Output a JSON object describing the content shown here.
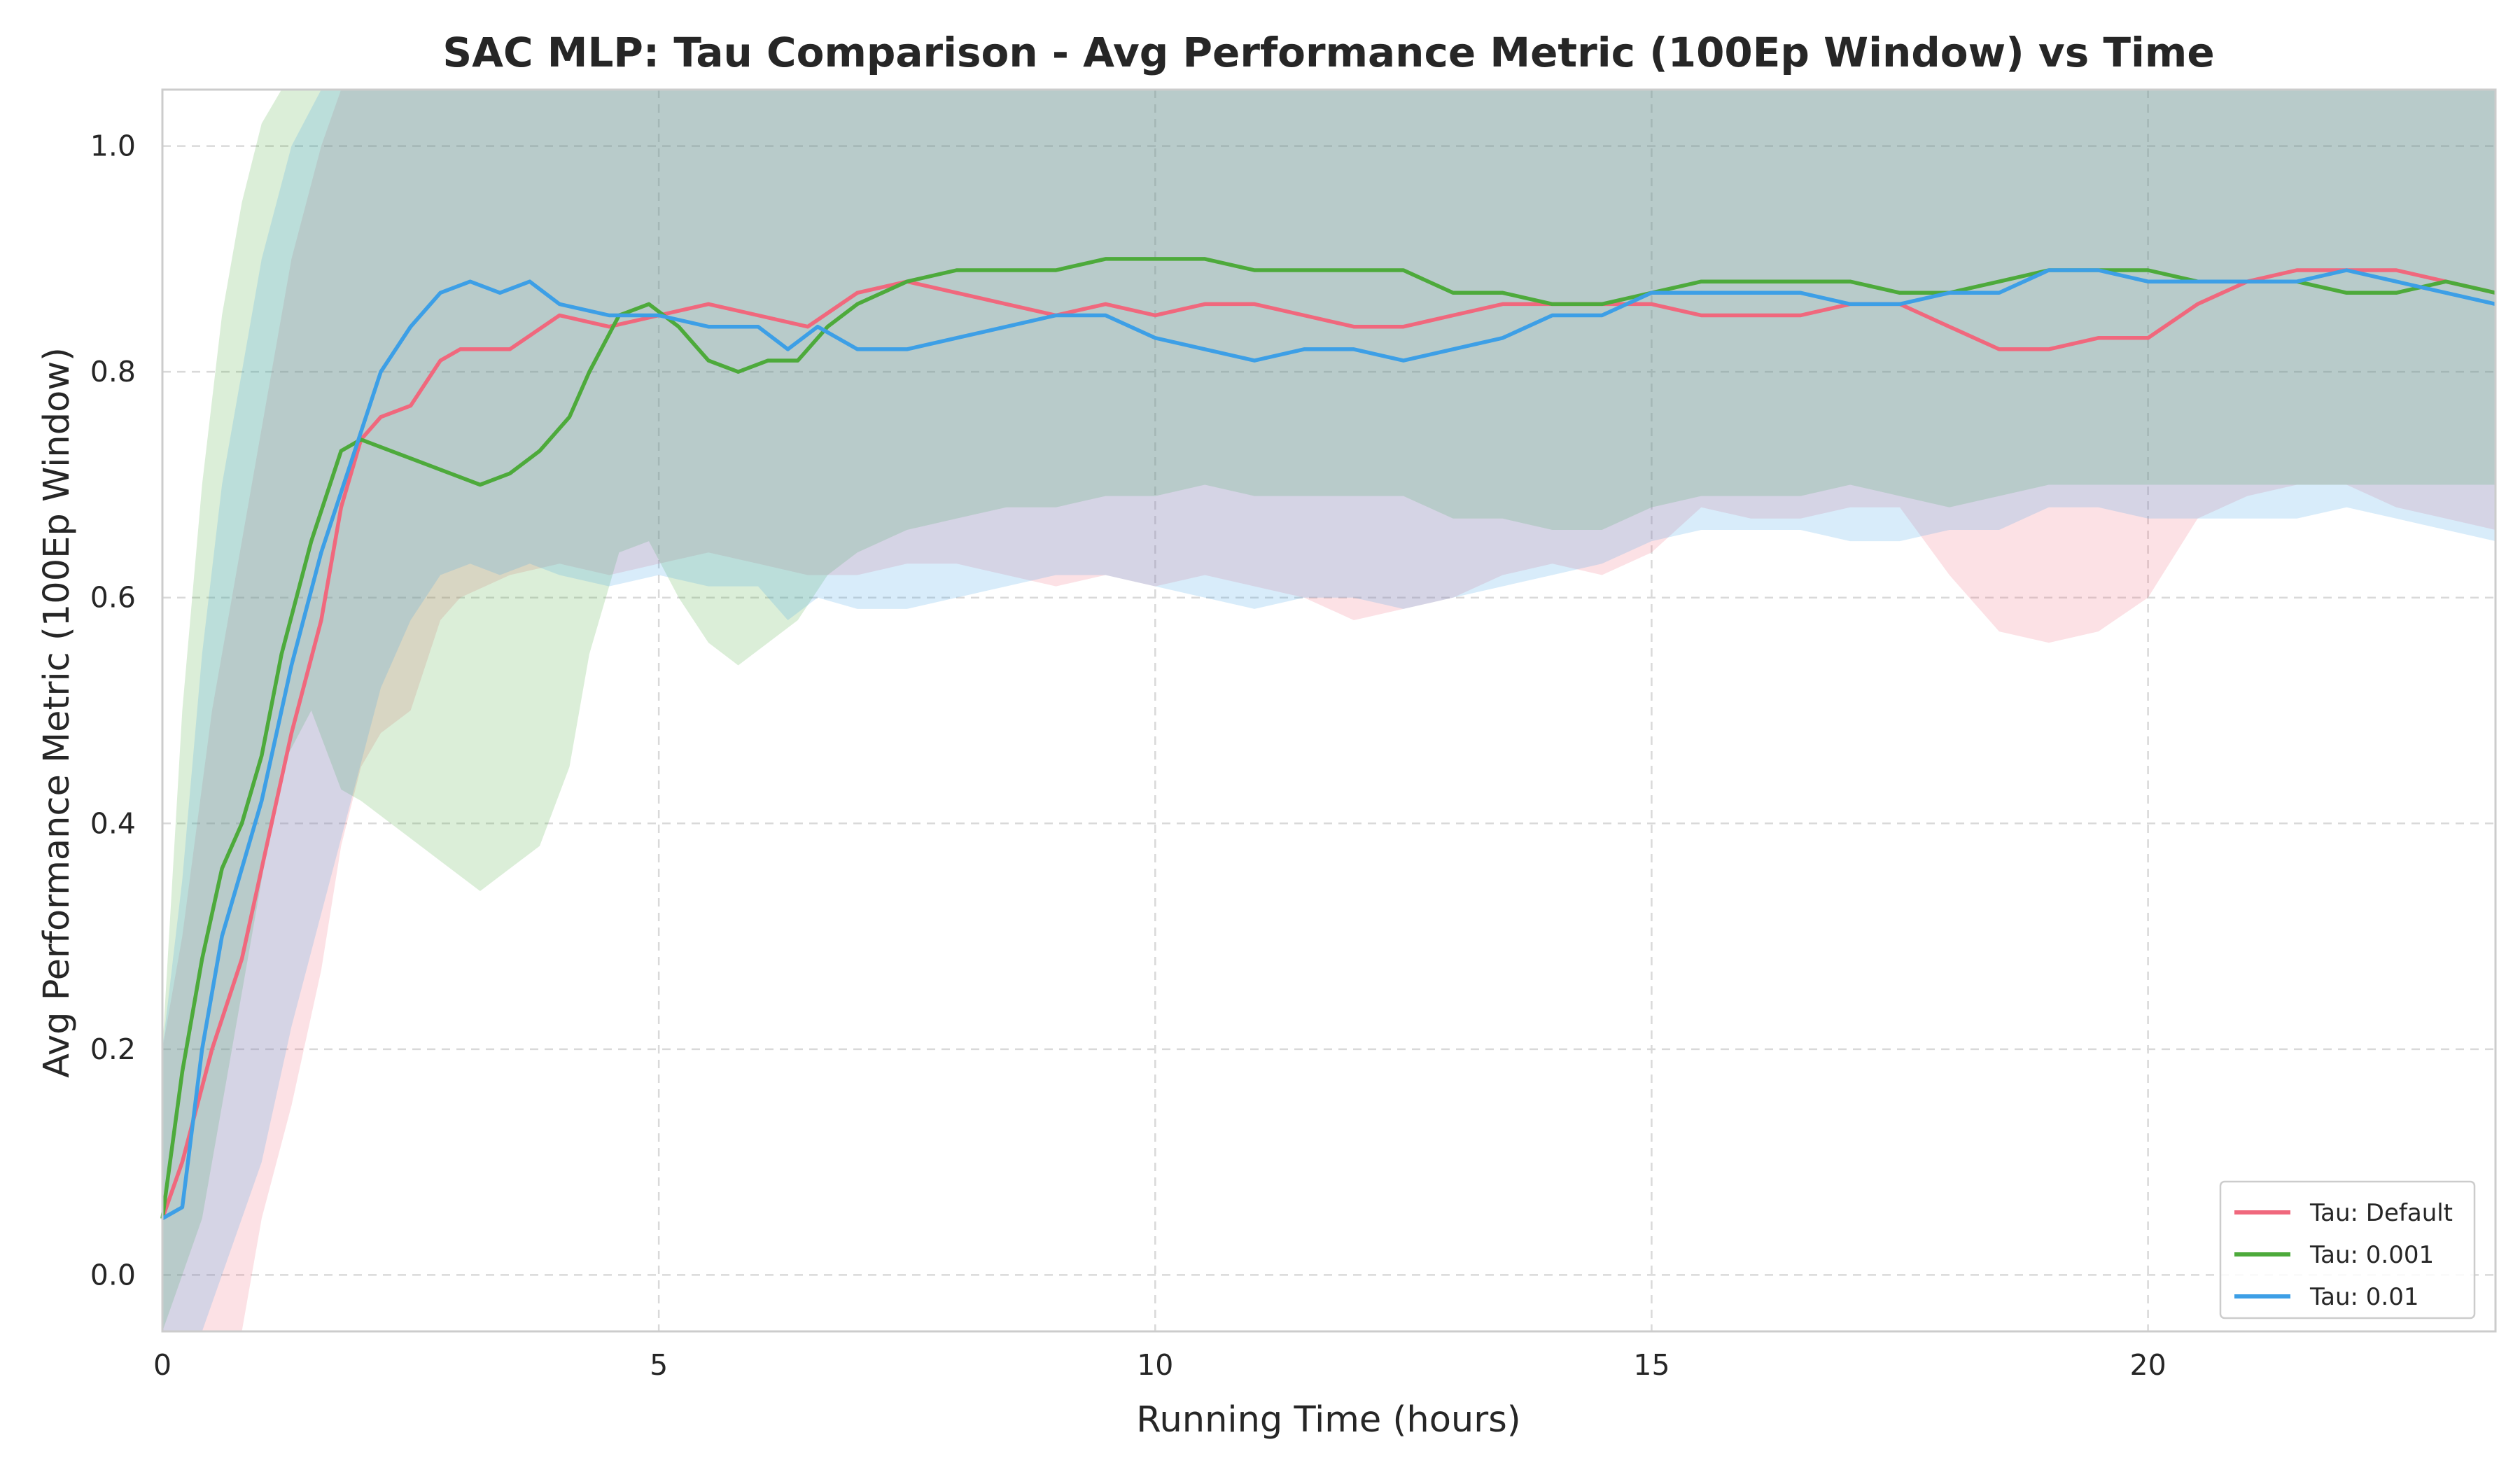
{
  "chart_data": {
    "type": "line",
    "title": "SAC MLP: Tau Comparison - Avg Performance Metric (100Ep Window) vs Time",
    "xlabel": "Running Time (hours)",
    "ylabel": "Avg Performance Metric (100Ep Window)",
    "xlim": [
      0,
      23.5
    ],
    "ylim": [
      -0.05,
      1.05
    ],
    "xticks": [
      0,
      5,
      10,
      15,
      20
    ],
    "yticks": [
      0.0,
      0.2,
      0.4,
      0.6,
      0.8,
      1.0
    ],
    "xtick_labels": [
      "0",
      "5",
      "10",
      "15",
      "20"
    ],
    "ytick_labels": [
      "0.0",
      "0.2",
      "0.4",
      "0.6",
      "0.8",
      "1.0"
    ],
    "grid": true,
    "legend_position": "bottom-right",
    "series": [
      {
        "name": "Tau: Default",
        "color": "#f0687d",
        "x": [
          0,
          0.2,
          0.5,
          0.8,
          1.0,
          1.3,
          1.6,
          1.8,
          2.0,
          2.2,
          2.5,
          2.8,
          3.0,
          3.5,
          4.0,
          4.5,
          5.0,
          5.5,
          6.0,
          6.5,
          7.0,
          7.5,
          8.0,
          8.5,
          9.0,
          9.5,
          10.0,
          10.5,
          11.0,
          11.5,
          12.0,
          12.5,
          13.0,
          13.5,
          14.0,
          14.5,
          15.0,
          15.5,
          16.0,
          16.5,
          17.0,
          17.5,
          18.0,
          18.5,
          19.0,
          19.5,
          20.0,
          20.5,
          21.0,
          21.5,
          22.0,
          22.5,
          23.0,
          23.5
        ],
        "y": [
          0.05,
          0.1,
          0.2,
          0.28,
          0.36,
          0.48,
          0.58,
          0.68,
          0.74,
          0.76,
          0.77,
          0.81,
          0.82,
          0.82,
          0.85,
          0.84,
          0.85,
          0.86,
          0.85,
          0.84,
          0.87,
          0.88,
          0.87,
          0.86,
          0.85,
          0.86,
          0.85,
          0.86,
          0.86,
          0.85,
          0.84,
          0.84,
          0.85,
          0.86,
          0.86,
          0.86,
          0.86,
          0.85,
          0.85,
          0.85,
          0.86,
          0.86,
          0.84,
          0.82,
          0.82,
          0.83,
          0.83,
          0.86,
          0.88,
          0.89,
          0.89,
          0.89,
          0.88,
          0.87
        ],
        "band_lower": [
          -0.05,
          -0.05,
          -0.05,
          -0.05,
          0.05,
          0.15,
          0.27,
          0.38,
          0.45,
          0.48,
          0.5,
          0.58,
          0.6,
          0.62,
          0.63,
          0.62,
          0.63,
          0.64,
          0.63,
          0.62,
          0.62,
          0.63,
          0.63,
          0.62,
          0.61,
          0.62,
          0.61,
          0.62,
          0.61,
          0.6,
          0.58,
          0.59,
          0.6,
          0.62,
          0.63,
          0.62,
          0.64,
          0.68,
          0.67,
          0.67,
          0.68,
          0.68,
          0.62,
          0.57,
          0.56,
          0.57,
          0.6,
          0.67,
          0.69,
          0.7,
          0.7,
          0.68,
          0.67,
          0.66
        ],
        "band_upper": [
          0.2,
          0.3,
          0.5,
          0.65,
          0.75,
          0.9,
          1.0,
          1.05,
          1.05,
          1.05,
          1.05,
          1.05,
          1.05,
          1.05,
          1.05,
          1.05,
          1.05,
          1.05,
          1.05,
          1.05,
          1.05,
          1.05,
          1.05,
          1.05,
          1.05,
          1.05,
          1.05,
          1.05,
          1.05,
          1.05,
          1.05,
          1.05,
          1.05,
          1.05,
          1.05,
          1.05,
          1.05,
          1.05,
          1.05,
          1.05,
          1.05,
          1.05,
          1.05,
          1.05,
          1.05,
          1.05,
          1.05,
          1.05,
          1.05,
          1.05,
          1.05,
          1.05,
          1.05,
          1.05
        ]
      },
      {
        "name": "Tau: 0.001",
        "color": "#4daa3b",
        "x": [
          0,
          0.2,
          0.4,
          0.6,
          0.8,
          1.0,
          1.2,
          1.5,
          1.8,
          2.0,
          2.3,
          2.6,
          2.9,
          3.2,
          3.5,
          3.8,
          4.1,
          4.3,
          4.6,
          4.9,
          5.2,
          5.5,
          5.8,
          6.1,
          6.4,
          6.7,
          7.0,
          7.5,
          8.0,
          8.5,
          9.0,
          9.5,
          10.0,
          10.5,
          11.0,
          11.5,
          12.0,
          12.5,
          13.0,
          13.5,
          14.0,
          14.5,
          15.0,
          15.5,
          16.0,
          16.5,
          17.0,
          17.5,
          18.0,
          18.5,
          19.0,
          19.5,
          20.0,
          20.5,
          21.0,
          21.5,
          22.0,
          22.5,
          23.0,
          23.5
        ],
        "y": [
          0.05,
          0.18,
          0.28,
          0.36,
          0.4,
          0.46,
          0.55,
          0.65,
          0.73,
          0.74,
          0.73,
          0.72,
          0.71,
          0.7,
          0.71,
          0.73,
          0.76,
          0.8,
          0.85,
          0.86,
          0.84,
          0.81,
          0.8,
          0.81,
          0.81,
          0.84,
          0.86,
          0.88,
          0.89,
          0.89,
          0.89,
          0.9,
          0.9,
          0.9,
          0.89,
          0.89,
          0.89,
          0.89,
          0.87,
          0.87,
          0.86,
          0.86,
          0.87,
          0.88,
          0.88,
          0.88,
          0.88,
          0.87,
          0.87,
          0.88,
          0.89,
          0.89,
          0.89,
          0.88,
          0.88,
          0.88,
          0.87,
          0.87,
          0.88,
          0.87
        ],
        "band_lower": [
          -0.05,
          0.0,
          0.05,
          0.15,
          0.25,
          0.35,
          0.45,
          0.5,
          0.43,
          0.42,
          0.4,
          0.38,
          0.36,
          0.34,
          0.36,
          0.38,
          0.45,
          0.55,
          0.64,
          0.65,
          0.6,
          0.56,
          0.54,
          0.56,
          0.58,
          0.62,
          0.64,
          0.66,
          0.67,
          0.68,
          0.68,
          0.69,
          0.69,
          0.7,
          0.69,
          0.69,
          0.69,
          0.69,
          0.67,
          0.67,
          0.66,
          0.66,
          0.68,
          0.69,
          0.69,
          0.69,
          0.7,
          0.69,
          0.68,
          0.69,
          0.7,
          0.7,
          0.7,
          0.7,
          0.7,
          0.7,
          0.7,
          0.7,
          0.7,
          0.7
        ],
        "band_upper": [
          0.2,
          0.5,
          0.7,
          0.85,
          0.95,
          1.02,
          1.05,
          1.05,
          1.05,
          1.05,
          1.05,
          1.05,
          1.05,
          1.05,
          1.05,
          1.05,
          1.05,
          1.05,
          1.05,
          1.05,
          1.05,
          1.05,
          1.05,
          1.05,
          1.05,
          1.05,
          1.05,
          1.05,
          1.05,
          1.05,
          1.05,
          1.05,
          1.05,
          1.05,
          1.05,
          1.05,
          1.05,
          1.05,
          1.05,
          1.05,
          1.05,
          1.05,
          1.05,
          1.05,
          1.05,
          1.05,
          1.05,
          1.05,
          1.05,
          1.05,
          1.05,
          1.05,
          1.05,
          1.05,
          1.05,
          1.05,
          1.05,
          1.05,
          1.05,
          1.05
        ]
      },
      {
        "name": "Tau: 0.01",
        "color": "#3d9fe6",
        "x": [
          0,
          0.2,
          0.4,
          0.6,
          0.8,
          1.0,
          1.3,
          1.6,
          1.9,
          2.2,
          2.5,
          2.8,
          3.1,
          3.4,
          3.7,
          4.0,
          4.5,
          5.0,
          5.5,
          6.0,
          6.3,
          6.6,
          7.0,
          7.5,
          8.0,
          8.5,
          9.0,
          9.5,
          10.0,
          10.5,
          11.0,
          11.5,
          12.0,
          12.5,
          13.0,
          13.5,
          14.0,
          14.5,
          15.0,
          15.5,
          16.0,
          16.5,
          17.0,
          17.5,
          18.0,
          18.5,
          19.0,
          19.5,
          20.0,
          20.5,
          21.0,
          21.5,
          22.0,
          22.5,
          23.0,
          23.5
        ],
        "y": [
          0.05,
          0.06,
          0.2,
          0.3,
          0.36,
          0.42,
          0.54,
          0.64,
          0.72,
          0.8,
          0.84,
          0.87,
          0.88,
          0.87,
          0.88,
          0.86,
          0.85,
          0.85,
          0.84,
          0.84,
          0.82,
          0.84,
          0.82,
          0.82,
          0.83,
          0.84,
          0.85,
          0.85,
          0.83,
          0.82,
          0.81,
          0.82,
          0.82,
          0.81,
          0.82,
          0.83,
          0.85,
          0.85,
          0.87,
          0.87,
          0.87,
          0.87,
          0.86,
          0.86,
          0.87,
          0.87,
          0.89,
          0.89,
          0.88,
          0.88,
          0.88,
          0.88,
          0.89,
          0.88,
          0.87,
          0.86
        ],
        "band_lower": [
          -0.05,
          -0.05,
          -0.05,
          0.0,
          0.05,
          0.1,
          0.22,
          0.32,
          0.42,
          0.52,
          0.58,
          0.62,
          0.63,
          0.62,
          0.63,
          0.62,
          0.61,
          0.62,
          0.61,
          0.61,
          0.58,
          0.6,
          0.59,
          0.59,
          0.6,
          0.61,
          0.62,
          0.62,
          0.61,
          0.6,
          0.59,
          0.6,
          0.6,
          0.59,
          0.6,
          0.61,
          0.62,
          0.63,
          0.65,
          0.66,
          0.66,
          0.66,
          0.65,
          0.65,
          0.66,
          0.66,
          0.68,
          0.68,
          0.67,
          0.67,
          0.67,
          0.67,
          0.68,
          0.67,
          0.66,
          0.65
        ],
        "band_upper": [
          0.2,
          0.35,
          0.55,
          0.7,
          0.8,
          0.9,
          1.0,
          1.05,
          1.05,
          1.05,
          1.05,
          1.05,
          1.05,
          1.05,
          1.05,
          1.05,
          1.05,
          1.05,
          1.05,
          1.05,
          1.05,
          1.05,
          1.05,
          1.05,
          1.05,
          1.05,
          1.05,
          1.05,
          1.05,
          1.05,
          1.05,
          1.05,
          1.05,
          1.05,
          1.05,
          1.05,
          1.05,
          1.05,
          1.05,
          1.05,
          1.05,
          1.05,
          1.05,
          1.05,
          1.05,
          1.05,
          1.05,
          1.05,
          1.05,
          1.05,
          1.05,
          1.05,
          1.05,
          1.05,
          1.05,
          1.05
        ]
      }
    ]
  }
}
